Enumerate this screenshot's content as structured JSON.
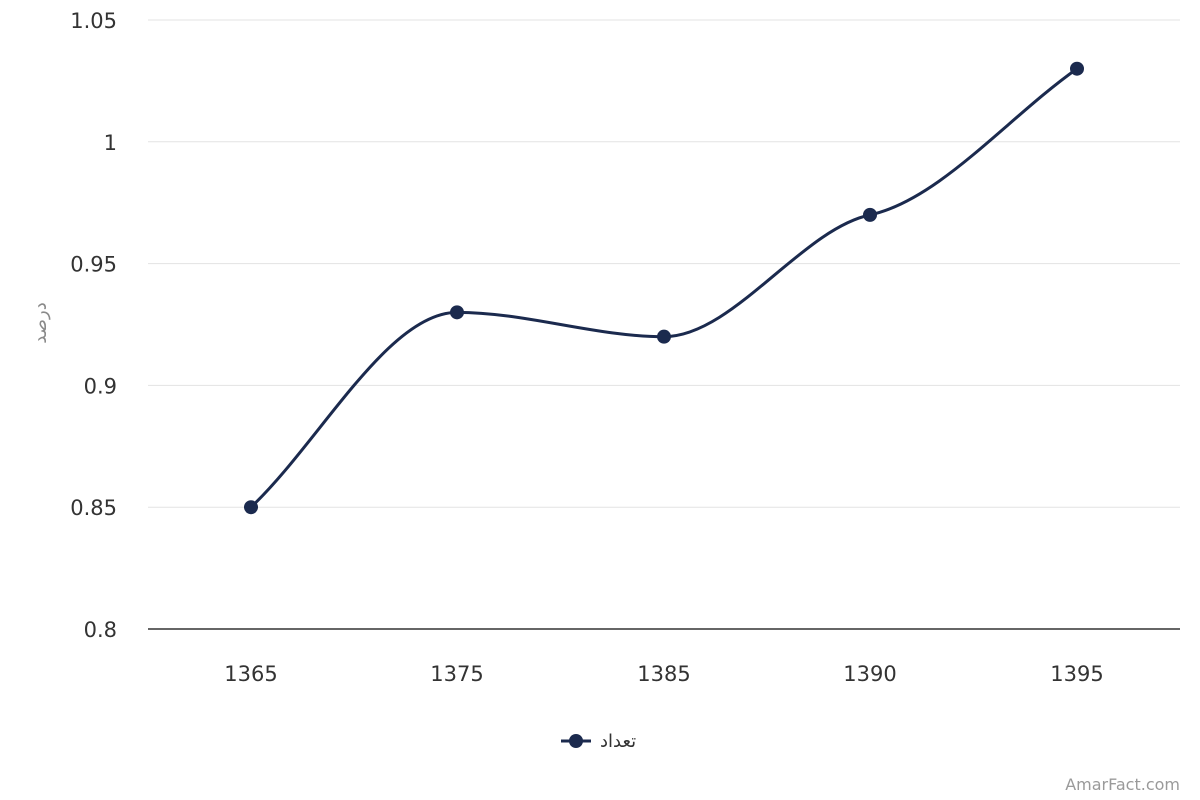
{
  "chart_data": {
    "type": "line",
    "title": "",
    "xlabel": "",
    "ylabel": "درصد",
    "categories": [
      "1365",
      "1375",
      "1385",
      "1390",
      "1395"
    ],
    "series": [
      {
        "name": "تعداد",
        "values": [
          0.85,
          0.93,
          0.92,
          0.97,
          1.03
        ],
        "color": "#1b2a4e"
      }
    ],
    "ylim": [
      0.8,
      1.05
    ],
    "yticks": [
      "0.8",
      "0.85",
      "0.9",
      "0.95",
      "1",
      "1.05"
    ],
    "grid": true,
    "smooth": true,
    "legend_position": "bottom-center"
  },
  "credit": "AmarFact.com",
  "colors": {
    "series": "#1b2a4e",
    "grid": "#e3e3e3",
    "axis": "#333333"
  }
}
